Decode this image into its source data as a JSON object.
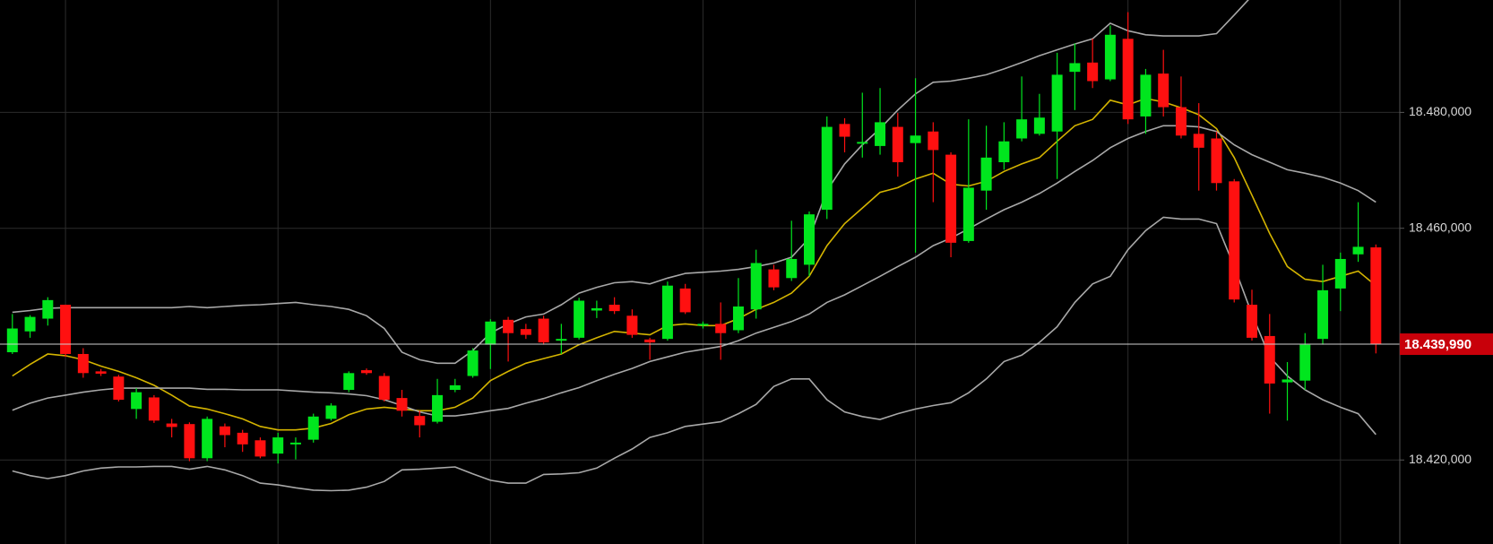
{
  "chart_data": {
    "type": "candlestick",
    "open": [
      18.4386,
      18.4422,
      18.4444,
      18.4468,
      18.4383,
      18.4353,
      18.4344,
      18.4288,
      18.4308,
      18.4263,
      18.4262,
      18.4203,
      18.4258,
      18.4247,
      18.4234,
      18.4211,
      18.4227,
      18.4235,
      18.4271,
      18.4321,
      18.4355,
      18.4345,
      18.4307,
      18.4276,
      18.4266,
      18.4321,
      18.4345,
      18.4399,
      18.4442,
      18.4426,
      18.4444,
      18.4406,
      18.4411,
      18.4458,
      18.4468,
      18.4449,
      18.4408,
      18.4409,
      18.4496,
      18.4432,
      18.4435,
      18.4424,
      18.446,
      18.4529,
      18.4514,
      18.4537,
      18.4632,
      18.478,
      18.4747,
      18.4742,
      18.4775,
      18.4747,
      18.4767,
      18.4727,
      18.4578,
      18.4665,
      18.4714,
      18.4755,
      18.4763,
      18.4767,
      18.487,
      18.4886,
      18.4857,
      18.4927,
      18.4793,
      18.4867,
      18.4809,
      18.4763,
      18.4755,
      18.4681,
      18.4468,
      18.4414,
      18.4334,
      18.4337,
      18.4409,
      18.4496,
      18.4555,
      18.4567
    ],
    "high": [
      18.4452,
      18.445,
      18.4481,
      18.4468,
      18.4393,
      18.4357,
      18.4347,
      18.4324,
      18.4312,
      18.4271,
      18.4265,
      18.4275,
      18.4263,
      18.4252,
      18.4239,
      18.4247,
      18.4239,
      18.428,
      18.4298,
      18.4353,
      18.4358,
      18.435,
      18.4321,
      18.4285,
      18.434,
      18.434,
      18.4393,
      18.4443,
      18.4447,
      18.4435,
      18.4449,
      18.4435,
      18.448,
      18.4475,
      18.4481,
      18.446,
      18.4411,
      18.4508,
      18.4504,
      18.4439,
      18.4472,
      18.4514,
      18.4563,
      18.4537,
      18.4613,
      18.4629,
      18.4793,
      18.479,
      18.4834,
      18.4842,
      18.4799,
      18.4859,
      18.4783,
      18.4731,
      18.4788,
      18.4777,
      18.4783,
      18.4862,
      18.4832,
      18.4903,
      18.4919,
      18.4927,
      18.495,
      18.4973,
      18.4875,
      18.4908,
      18.4862,
      18.4816,
      18.4767,
      18.4685,
      18.4494,
      18.4452,
      18.4369,
      18.4419,
      18.4537,
      18.4558,
      18.4645,
      18.4572
    ],
    "low": [
      18.4383,
      18.4411,
      18.4432,
      18.4378,
      18.4342,
      18.4345,
      18.4301,
      18.4271,
      18.4264,
      18.4239,
      18.4198,
      18.4198,
      18.4222,
      18.4214,
      18.4203,
      18.4194,
      18.4201,
      18.423,
      18.4268,
      18.4317,
      18.4347,
      18.4301,
      18.4275,
      18.4239,
      18.4263,
      18.4317,
      18.4342,
      18.4357,
      18.437,
      18.4409,
      18.4399,
      18.4383,
      18.4408,
      18.4445,
      18.4452,
      18.4411,
      18.4373,
      18.4406,
      18.4452,
      18.4427,
      18.4373,
      18.4419,
      18.4444,
      18.4493,
      18.4509,
      18.4517,
      18.4616,
      18.4731,
      18.4722,
      18.4727,
      18.4689,
      18.4558,
      18.4645,
      18.455,
      18.4575,
      18.4632,
      18.4701,
      18.475,
      18.476,
      18.4685,
      18.4804,
      18.4842,
      18.4854,
      18.478,
      18.4763,
      18.4793,
      18.4755,
      18.4665,
      18.4665,
      18.4472,
      18.4406,
      18.428,
      18.4268,
      18.4321,
      18.4399,
      18.4457,
      18.4542,
      18.4384
    ],
    "close": [
      18.4427,
      18.4447,
      18.4476,
      18.4383,
      18.435,
      18.4349,
      18.4304,
      18.4317,
      18.4268,
      18.4257,
      18.4203,
      18.4271,
      18.4243,
      18.4227,
      18.4206,
      18.4239,
      18.423,
      18.4275,
      18.4294,
      18.435,
      18.435,
      18.4304,
      18.4285,
      18.426,
      18.4312,
      18.4329,
      18.4389,
      18.4439,
      18.4419,
      18.4416,
      18.4403,
      18.4409,
      18.4475,
      18.4462,
      18.4457,
      18.4416,
      18.4403,
      18.4501,
      18.4455,
      18.4435,
      18.4419,
      18.4465,
      18.454,
      18.4498,
      18.4547,
      18.4624,
      18.4775,
      18.4758,
      18.4749,
      18.4783,
      18.4714,
      18.476,
      18.4735,
      18.4575,
      18.467,
      18.4722,
      18.475,
      18.4788,
      18.4791,
      18.4865,
      18.4885,
      18.4854,
      18.4934,
      18.4788,
      18.4865,
      18.4809,
      18.476,
      18.4739,
      18.4678,
      18.4477,
      18.4411,
      18.4332,
      18.4339,
      18.4399,
      18.4493,
      18.4547,
      18.4568,
      18.43999
    ],
    "up_color": "#00e61e",
    "down_color": "#ff1010",
    "lines": [
      {
        "color": "#a8a8a8",
        "values": [
          18.4455,
          18.4458,
          18.4462,
          18.4463,
          18.4463,
          18.4463,
          18.4463,
          18.4463,
          18.4463,
          18.4463,
          18.4465,
          18.4463,
          18.4465,
          18.4467,
          18.4468,
          18.447,
          18.4472,
          18.4468,
          18.4465,
          18.446,
          18.4449,
          18.4427,
          18.4386,
          18.4373,
          18.4367,
          18.4367,
          18.4389,
          18.4419,
          18.4435,
          18.4447,
          18.4452,
          18.4468,
          18.4488,
          18.4498,
          18.4506,
          18.4508,
          18.4504,
          18.4514,
          18.4522,
          18.4524,
          18.4526,
          18.4529,
          18.4534,
          18.454,
          18.455,
          18.4583,
          18.4665,
          18.4711,
          18.4744,
          18.4772,
          18.4804,
          18.4832,
          18.4852,
          18.4854,
          18.4859,
          18.4865,
          18.4875,
          18.4886,
          18.4898,
          18.4908,
          18.4918,
          18.4927,
          18.4954,
          18.4941,
          18.4934,
          18.4932,
          18.4932,
          18.4932,
          18.4936,
          18.4968,
          18.5001,
          null,
          null,
          null,
          null,
          null,
          null,
          null
        ]
      },
      {
        "color": "#d4b400",
        "values": [
          18.4345,
          18.4365,
          18.4383,
          18.438,
          18.4373,
          18.4362,
          18.4353,
          18.4342,
          18.4329,
          18.4312,
          18.4293,
          18.4288,
          18.428,
          18.4271,
          18.4258,
          18.4252,
          18.4252,
          18.4255,
          18.4263,
          18.4278,
          18.4288,
          18.4291,
          18.4288,
          18.4285,
          18.4285,
          18.4291,
          18.4307,
          18.4337,
          18.4353,
          18.4367,
          18.4375,
          18.4383,
          18.4399,
          18.4411,
          18.4422,
          18.4419,
          18.4416,
          18.4432,
          18.4435,
          18.4432,
          18.4432,
          18.4444,
          18.446,
          18.4472,
          18.4488,
          18.4517,
          18.457,
          18.4608,
          18.4635,
          18.4662,
          18.467,
          18.4685,
          18.4695,
          18.4676,
          18.4673,
          18.4681,
          18.4698,
          18.4711,
          18.4722,
          18.475,
          18.4777,
          18.4788,
          18.4821,
          18.4813,
          18.4824,
          18.4818,
          18.4808,
          18.4796,
          18.4772,
          18.4722,
          18.4657,
          18.4591,
          18.4534,
          18.4512,
          18.4508,
          18.4517,
          18.4526,
          18.4501
        ]
      },
      {
        "color": "#a8a8a8",
        "values": [
          18.4286,
          18.4298,
          18.4307,
          18.4312,
          18.4317,
          18.4321,
          18.4324,
          18.4324,
          18.4324,
          18.4324,
          18.4324,
          18.4322,
          18.4322,
          18.4321,
          18.4321,
          18.4321,
          18.4319,
          18.4317,
          18.4316,
          18.4314,
          18.4311,
          18.4304,
          18.4294,
          18.4283,
          18.4276,
          18.4276,
          18.428,
          18.4285,
          18.4289,
          18.4298,
          18.4306,
          18.4316,
          18.4325,
          18.4337,
          18.4348,
          18.4358,
          18.437,
          18.4378,
          18.4386,
          18.4391,
          18.4396,
          18.4406,
          18.4419,
          18.4429,
          18.4439,
          18.4452,
          18.4472,
          18.4485,
          18.4501,
          18.4517,
          18.4534,
          18.455,
          18.457,
          18.4583,
          18.4599,
          18.4616,
          18.4632,
          18.4645,
          18.466,
          18.4678,
          18.4698,
          18.4717,
          18.4739,
          18.4755,
          18.4767,
          18.4777,
          18.4777,
          18.4775,
          18.4767,
          18.4744,
          18.4727,
          18.4714,
          18.4701,
          18.4695,
          18.4688,
          18.4678,
          18.4665,
          18.4645
        ]
      },
      {
        "color": "#a8a8a8",
        "values": [
          18.4181,
          18.4173,
          18.4168,
          18.4173,
          18.4181,
          18.4186,
          18.4188,
          18.4188,
          18.4189,
          18.4189,
          18.4184,
          18.4189,
          18.4183,
          18.4173,
          18.416,
          18.4157,
          18.4152,
          18.4148,
          18.4147,
          18.4148,
          18.4153,
          18.4163,
          18.4183,
          18.4184,
          18.4186,
          18.4188,
          18.4176,
          18.4165,
          18.416,
          18.416,
          18.4175,
          18.4176,
          18.4178,
          18.4186,
          18.4203,
          18.4219,
          18.4239,
          18.4247,
          18.4258,
          18.4262,
          18.4266,
          18.428,
          18.4296,
          18.4327,
          18.434,
          18.434,
          18.4304,
          18.4283,
          18.4275,
          18.427,
          18.428,
          18.4288,
          18.4294,
          18.4299,
          18.4316,
          18.434,
          18.437,
          18.4381,
          18.4403,
          18.443,
          18.4472,
          18.4504,
          18.4517,
          18.4563,
          18.4596,
          18.4619,
          18.4616,
          18.4616,
          18.4608,
          18.4534,
          18.4452,
          18.4378,
          18.4345,
          18.4321,
          18.4304,
          18.4291,
          18.428,
          18.4244
        ]
      }
    ],
    "ylim": [
      18.4055,
      18.4994
    ],
    "yticks": [
      {
        "value": 18.42,
        "label": "18.420,000"
      },
      {
        "value": 18.46,
        "label": "18.460,000"
      },
      {
        "value": 18.48,
        "label": "18.480,000"
      }
    ],
    "grid": true,
    "last_price": {
      "value": 18.43999,
      "label": "18.439,990"
    }
  }
}
